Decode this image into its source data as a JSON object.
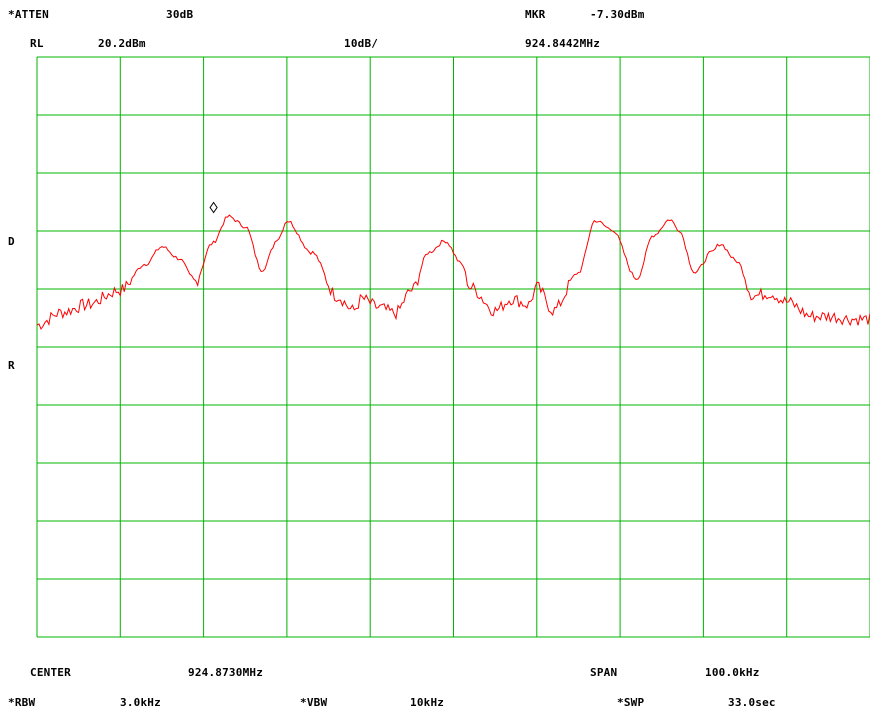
{
  "header": {
    "atten_label": "*ATTEN",
    "atten_value": "30dB",
    "mkr_label": "MKR",
    "mkr_value": "-7.30dBm",
    "rl_label": "RL",
    "rl_value": "20.2dBm",
    "scale": "10dB/",
    "mkr_freq": "924.8442MHz"
  },
  "side": {
    "d_label": "D",
    "r_label": "R"
  },
  "footer": {
    "center_label": "CENTER",
    "center_value": "924.8730MHz",
    "span_label": "SPAN",
    "span_value": "100.0kHz",
    "rbw_label": "*RBW",
    "rbw_value": "3.0kHz",
    "vbw_label": "*VBW",
    "vbw_value": "10kHz",
    "swp_label": "*SWP",
    "swp_value": "33.0sec"
  },
  "colors": {
    "grid": "#00b400",
    "trace": "#ff0000",
    "text": "#000000",
    "marker": "#000000"
  },
  "chart_data": {
    "type": "line",
    "x_unit": "MHz",
    "y_unit": "dBm",
    "xlim": [
      924.823,
      924.923
    ],
    "ylim": [
      -79.8,
      20.2
    ],
    "grid": true,
    "marker": {
      "x": 924.8442,
      "y": -7.3
    },
    "series": [
      {
        "x": [
          924.823,
          924.826,
          924.829,
          924.833,
          924.836,
          924.838,
          924.84,
          924.842,
          924.844,
          924.846,
          924.848,
          924.85,
          924.852,
          924.853,
          924.856,
          924.859,
          924.861,
          924.862,
          924.864,
          924.866,
          924.868,
          924.87,
          924.872,
          924.874,
          924.875,
          924.878,
          924.88,
          924.882,
          924.883,
          924.885,
          924.888,
          924.89,
          924.892,
          924.895,
          924.897,
          924.899,
          924.9,
          924.902,
          924.904,
          924.905,
          924.907,
          924.909,
          924.911,
          924.913,
          924.916,
          924.918,
          924.921,
          924.923
        ],
        "y": [
          -26.0,
          -23.8,
          -22.5,
          -20.0,
          -15.5,
          -12.5,
          -14.5,
          -18.5,
          -12.0,
          -7.3,
          -9.0,
          -16.5,
          -11.0,
          -8.0,
          -13.5,
          -21.0,
          -23.5,
          -21.5,
          -23.0,
          -24.0,
          -20.0,
          -13.5,
          -11.5,
          -15.5,
          -19.5,
          -23.5,
          -21.5,
          -22.5,
          -19.5,
          -23.5,
          -17.0,
          -8.0,
          -9.5,
          -18.0,
          -10.5,
          -7.8,
          -9.5,
          -17.0,
          -13.5,
          -12.0,
          -15.0,
          -21.0,
          -20.5,
          -22.0,
          -24.5,
          -24.5,
          -25.0,
          -25.0
        ]
      }
    ]
  }
}
